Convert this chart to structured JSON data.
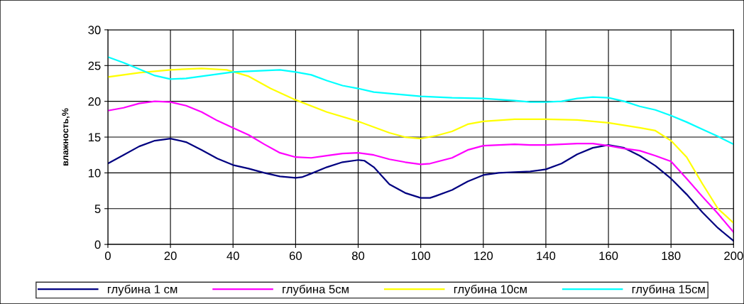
{
  "chart_data": {
    "type": "line",
    "ylabel": "влажность,%",
    "xlim": [
      0,
      200
    ],
    "xticks": [
      0,
      20,
      40,
      60,
      80,
      100,
      120,
      140,
      160,
      180,
      200
    ],
    "ylim": [
      0,
      30
    ],
    "yticks": [
      0,
      5,
      10,
      15,
      20,
      25,
      30
    ],
    "grid": true,
    "legend": "bottom",
    "marker": "none",
    "line_style": "solid",
    "series": [
      {
        "name": "глубина 1 см",
        "color": "#000080",
        "x": [
          0,
          5,
          10,
          15,
          20,
          25,
          30,
          35,
          40,
          45,
          50,
          55,
          60,
          62,
          65,
          70,
          75,
          80,
          82,
          85,
          90,
          95,
          100,
          103,
          105,
          110,
          115,
          120,
          125,
          130,
          135,
          140,
          145,
          150,
          155,
          160,
          165,
          170,
          175,
          180,
          185,
          190,
          195,
          200
        ],
        "values": [
          11.3,
          12.5,
          13.7,
          14.5,
          14.8,
          14.3,
          13.2,
          12.0,
          11.1,
          10.6,
          10.0,
          9.5,
          9.3,
          9.4,
          9.9,
          10.8,
          11.5,
          11.8,
          11.7,
          10.8,
          8.4,
          7.2,
          6.5,
          6.5,
          6.8,
          7.6,
          8.8,
          9.7,
          10.0,
          10.1,
          10.2,
          10.5,
          11.3,
          12.6,
          13.5,
          13.9,
          13.5,
          12.4,
          11.0,
          9.2,
          7.0,
          4.5,
          2.3,
          0.5
        ]
      },
      {
        "name": "глубина 5см",
        "color": "#ff00ff",
        "x": [
          0,
          5,
          10,
          15,
          20,
          25,
          30,
          35,
          40,
          45,
          50,
          55,
          60,
          65,
          70,
          75,
          80,
          85,
          90,
          95,
          100,
          103,
          110,
          115,
          120,
          130,
          135,
          140,
          150,
          155,
          160,
          165,
          170,
          175,
          180,
          185,
          190,
          195,
          200
        ],
        "values": [
          18.7,
          19.1,
          19.7,
          20.0,
          19.9,
          19.4,
          18.5,
          17.3,
          16.3,
          15.3,
          14.0,
          12.8,
          12.2,
          12.1,
          12.4,
          12.7,
          12.8,
          12.5,
          11.9,
          11.5,
          11.2,
          11.3,
          12.1,
          13.2,
          13.8,
          14.0,
          13.9,
          13.9,
          14.1,
          14.1,
          13.8,
          13.4,
          13.1,
          12.4,
          11.6,
          9.2,
          6.7,
          4.3,
          1.7
        ]
      },
      {
        "name": "глубина 10см",
        "color": "#ffff00",
        "x": [
          0,
          10,
          20,
          30,
          38,
          45,
          52,
          60,
          70,
          80,
          90,
          95,
          100,
          105,
          110,
          115,
          120,
          130,
          140,
          150,
          160,
          170,
          175,
          180,
          185,
          190,
          195,
          200
        ],
        "values": [
          23.4,
          24.0,
          24.4,
          24.6,
          24.4,
          23.5,
          21.8,
          20.2,
          18.5,
          17.2,
          15.6,
          15.0,
          14.8,
          15.2,
          15.8,
          16.8,
          17.2,
          17.5,
          17.5,
          17.4,
          17.0,
          16.3,
          15.9,
          14.5,
          12.2,
          8.5,
          5.0,
          3.0
        ]
      },
      {
        "name": "глубина 15см",
        "color": "#00ffff",
        "x": [
          0,
          5,
          10,
          15,
          20,
          25,
          30,
          40,
          50,
          55,
          60,
          65,
          70,
          75,
          80,
          85,
          90,
          100,
          110,
          120,
          130,
          135,
          140,
          145,
          150,
          155,
          160,
          165,
          170,
          175,
          180,
          185,
          190,
          195,
          200
        ],
        "values": [
          26.2,
          25.4,
          24.5,
          23.6,
          23.1,
          23.2,
          23.5,
          24.1,
          24.3,
          24.4,
          24.1,
          23.7,
          22.9,
          22.2,
          21.8,
          21.3,
          21.1,
          20.7,
          20.5,
          20.4,
          20.1,
          19.9,
          19.9,
          20.0,
          20.4,
          20.6,
          20.5,
          20.0,
          19.3,
          18.8,
          18.0,
          17.1,
          16.1,
          15.1,
          14.0
        ]
      }
    ]
  }
}
